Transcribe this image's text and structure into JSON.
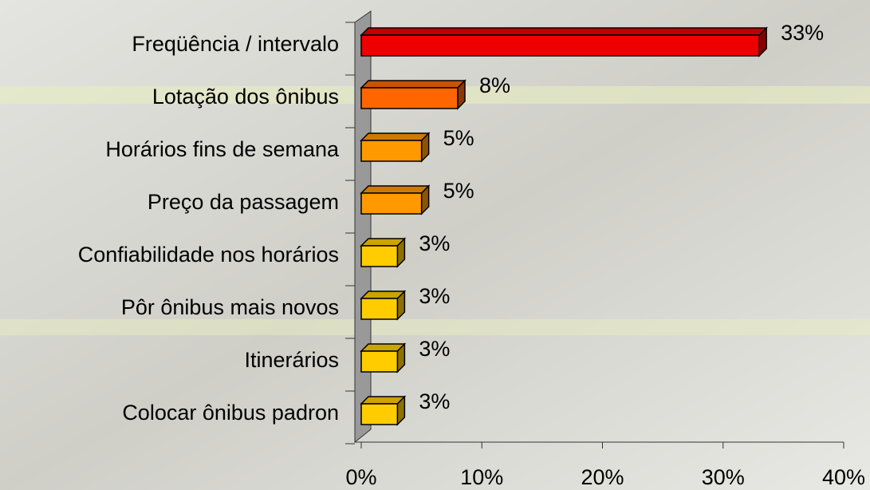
{
  "chart_data": {
    "type": "bar3d_horizontal",
    "categories": [
      "Freqüência / intervalo",
      "Lotação dos ônibus",
      "Horários fins de semana",
      "Preço da passagem",
      "Confiabilidade nos horários",
      "Pôr ônibus mais novos",
      "Itinerários",
      "Colocar ônibus padron"
    ],
    "values": [
      33,
      8,
      5,
      5,
      3,
      3,
      3,
      3
    ],
    "value_labels": [
      "33%",
      "8%",
      "5%",
      "5%",
      "3%",
      "3%",
      "3%",
      "3%"
    ],
    "colors": [
      "#ee0000",
      "#ff6600",
      "#ff9900",
      "#ff9900",
      "#ffcc00",
      "#ffcc00",
      "#ffcc00",
      "#ffcc00"
    ],
    "xlim": [
      0,
      40
    ],
    "xticks": [
      {
        "value": 0,
        "label": "0%"
      },
      {
        "value": 10,
        "label": "10%"
      },
      {
        "value": 20,
        "label": "20%"
      },
      {
        "value": 30,
        "label": "30%"
      },
      {
        "value": 40,
        "label": "40%"
      }
    ]
  }
}
